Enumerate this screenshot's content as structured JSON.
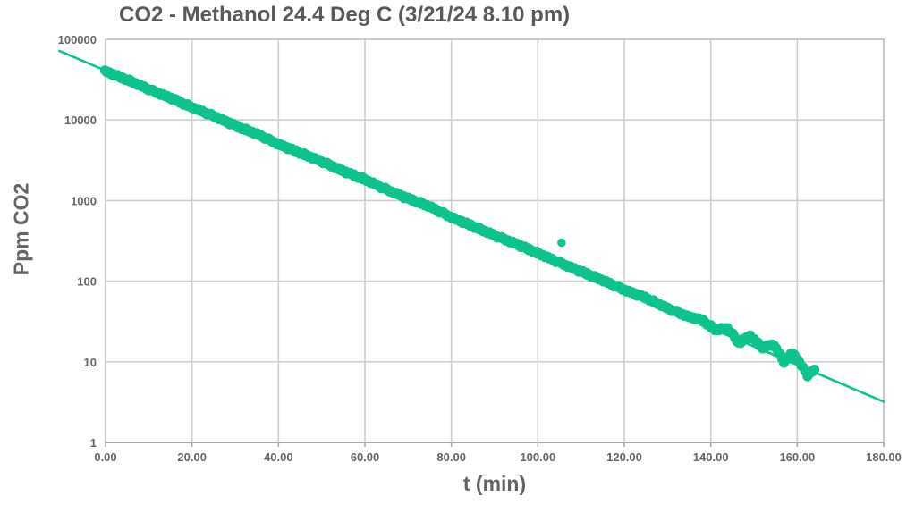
{
  "colors": {
    "series_green": "#0dc38e",
    "grid": "#cdcdcd",
    "plot_border": "#c2c2c2",
    "axis_line": "#a9a9a9",
    "title_text": "#58595b",
    "tick_text": "#636466",
    "background": "#ffffff"
  },
  "chart_data": {
    "type": "scatter",
    "title": "CO2 - Methanol 24.4 Deg C (3/21/24 8.10 pm)",
    "xlabel": "t (min)",
    "ylabel": "Ppm CO2",
    "grid": true,
    "legend": "none",
    "x_axis": {
      "min": 0,
      "max": 180,
      "tick_values": [
        0,
        20,
        40,
        60,
        80,
        100,
        120,
        140,
        160,
        180
      ],
      "tick_labels": [
        "0.00",
        "20.00",
        "40.00",
        "60.00",
        "80.00",
        "100.00",
        "120.00",
        "140.00",
        "160.00",
        "180.00"
      ]
    },
    "y_axis": {
      "scale": "log",
      "min": 1,
      "max": 100000,
      "tick_values": [
        1,
        10,
        100,
        1000,
        10000,
        100000
      ],
      "tick_labels": [
        "1",
        "10",
        "100",
        "1000",
        "10000",
        "100000"
      ]
    },
    "series": [
      {
        "name": "co2-readings-band",
        "style": "marker-band",
        "marker_px": 11,
        "points": [
          [
            0,
            40000
          ],
          [
            5,
            31500
          ],
          [
            10,
            24000
          ],
          [
            15,
            18800
          ],
          [
            20,
            14300
          ],
          [
            25,
            11200
          ],
          [
            30,
            8500
          ],
          [
            35,
            6700
          ],
          [
            40,
            5000
          ],
          [
            45,
            3900
          ],
          [
            50,
            3050
          ],
          [
            55,
            2320
          ],
          [
            60,
            1820
          ],
          [
            65,
            1370
          ],
          [
            70,
            1060
          ],
          [
            75,
            840
          ],
          [
            80,
            620
          ],
          [
            85,
            480
          ],
          [
            90,
            370
          ],
          [
            95,
            290
          ],
          [
            100,
            222
          ],
          [
            105,
            170
          ],
          [
            110,
            132
          ],
          [
            115,
            102
          ],
          [
            120,
            78
          ],
          [
            125,
            62
          ],
          [
            130,
            46
          ],
          [
            135,
            36
          ],
          [
            138,
            33
          ],
          [
            141,
            25
          ],
          [
            144,
            26
          ],
          [
            146.5,
            17
          ],
          [
            149,
            21
          ],
          [
            152,
            15
          ],
          [
            154.5,
            16.5
          ],
          [
            157,
            10
          ],
          [
            159,
            13
          ],
          [
            161,
            9
          ],
          [
            162.5,
            6.8
          ],
          [
            164,
            8
          ]
        ]
      },
      {
        "name": "exponential-trend-line",
        "style": "thin-line",
        "points": [
          [
            -10.7,
            71800
          ],
          [
            180,
            3.2
          ]
        ]
      },
      {
        "name": "outlier-point",
        "style": "single-marker",
        "points": [
          [
            105.5,
            300
          ]
        ]
      }
    ]
  }
}
